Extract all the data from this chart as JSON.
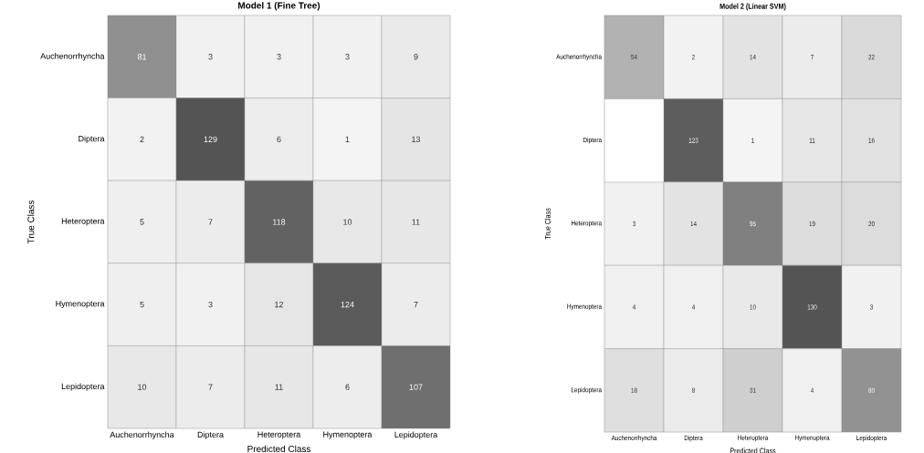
{
  "chart_data": [
    {
      "type": "heatmap",
      "title": "Model 1 (Fine Tree)",
      "xlabel": "Predicted Class",
      "ylabel": "True Class",
      "categories": [
        "Auchenorrhyncha",
        "Diptera",
        "Heteroptera",
        "Hymenoptera",
        "Lepidoptera"
      ],
      "y_categories": [
        "Auchenorrhyncha",
        "Diptera",
        "Heteroptera",
        "Hymenoptera",
        "Lepidoptera"
      ],
      "cells": [
        [
          81,
          3,
          3,
          3,
          9
        ],
        [
          2,
          129,
          6,
          1,
          13
        ],
        [
          5,
          7,
          118,
          10,
          11
        ],
        [
          5,
          3,
          12,
          124,
          7
        ],
        [
          10,
          7,
          11,
          6,
          107
        ]
      ],
      "data_labels": true
    },
    {
      "type": "heatmap",
      "title": "Model 2 (Linear SVM)",
      "xlabel": "Predicted Class",
      "ylabel": "True Class",
      "categories": [
        "Auchenorrhyncha",
        "Diptera",
        "Heteroptera",
        "Hymenoptera",
        "Lepidoptera"
      ],
      "y_categories": [
        "Auchenorrhyncha",
        "Diptera",
        "Heteroptera",
        "Hymenoptera",
        "Lepidoptera"
      ],
      "cells": [
        [
          54,
          2,
          14,
          7,
          22
        ],
        [
          null,
          123,
          1,
          11,
          16
        ],
        [
          3,
          14,
          95,
          19,
          20
        ],
        [
          4,
          4,
          10,
          130,
          3
        ],
        [
          18,
          8,
          31,
          4,
          80
        ]
      ],
      "data_labels": true
    }
  ]
}
